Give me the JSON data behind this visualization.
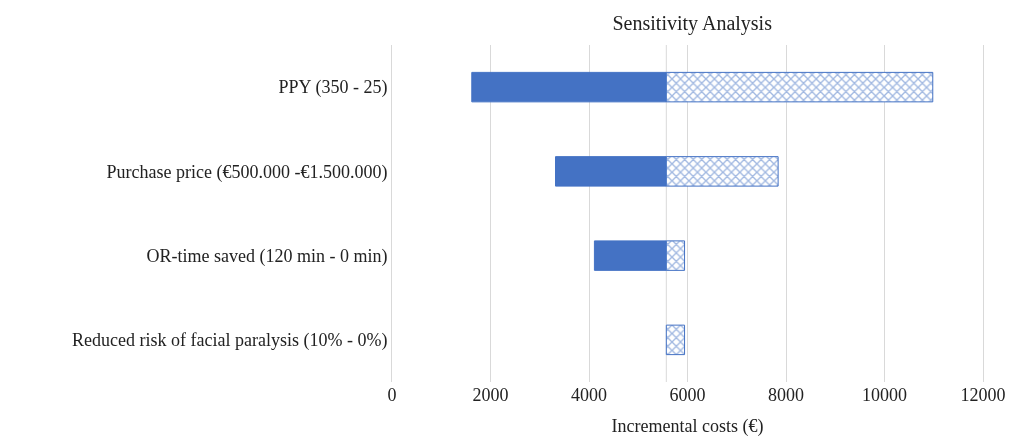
{
  "chart_data": {
    "type": "bar",
    "orientation": "horizontal",
    "title": "Sensitivity Analysis",
    "xlabel": "Incremental costs (€)",
    "categories": [
      "PPY (350 - 25)",
      "Purchase price (€500.000 -€1.500.000)",
      "OR-time saved (120 min - 0 min)",
      "Reduced risk of facial paralysis (10% - 0%)"
    ],
    "series": [
      {
        "color": "#4472c4",
        "base": [
          1620,
          3320,
          4110,
          null
        ],
        "values": [
          3950,
          2250,
          1460,
          null
        ]
      },
      {
        "color": "#4472c4",
        "base": [
          5570,
          5570,
          5570,
          5570
        ],
        "values": [
          5410,
          2270,
          370,
          370
        ]
      }
    ],
    "xlim": [
      0,
      12000
    ],
    "xticks": [
      0,
      2000,
      4000,
      6000,
      8000,
      10000,
      12000
    ],
    "grid": "x",
    "ref_lines": [
      {
        "axis": "x",
        "value": 5570,
        "color": "#d9d9d9"
      }
    ]
  }
}
